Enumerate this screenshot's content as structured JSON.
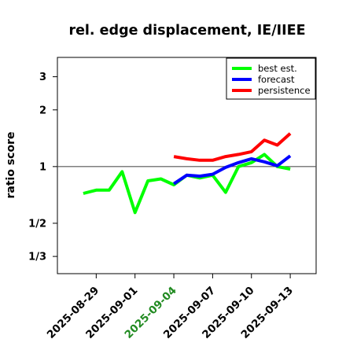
{
  "chart_data": {
    "type": "line",
    "title": "rel. edge displacement, IE/IIEE",
    "xlabel": "",
    "ylabel": "ratio score",
    "y_scale": "log",
    "ylim": [
      0.27,
      3.8
    ],
    "yticks": [
      {
        "value": 0.3333,
        "label": "1/3"
      },
      {
        "value": 0.5,
        "label": "1/2"
      },
      {
        "value": 1,
        "label": "1"
      },
      {
        "value": 2,
        "label": "2"
      },
      {
        "value": 3,
        "label": "3"
      }
    ],
    "xlim": [
      "2025-08-26",
      "2025-09-15"
    ],
    "xticks": [
      {
        "date": "2025-08-29",
        "label": "2025-08-29",
        "color": "#000000"
      },
      {
        "date": "2025-09-01",
        "label": "2025-09-01",
        "color": "#000000"
      },
      {
        "date": "2025-09-04",
        "label": "2025-09-04",
        "color": "#228B22"
      },
      {
        "date": "2025-09-07",
        "label": "2025-09-07",
        "color": "#000000"
      },
      {
        "date": "2025-09-10",
        "label": "2025-09-10",
        "color": "#000000"
      },
      {
        "date": "2025-09-13",
        "label": "2025-09-13",
        "color": "#000000"
      }
    ],
    "reference_line": 1,
    "legend_position": "top-right",
    "series": [
      {
        "name": "best est.",
        "color": "#00ff00",
        "x": [
          "2025-08-28",
          "2025-08-29",
          "2025-08-30",
          "2025-08-31",
          "2025-09-01",
          "2025-09-02",
          "2025-09-03",
          "2025-09-04",
          "2025-09-05",
          "2025-09-06",
          "2025-09-07",
          "2025-09-08",
          "2025-09-09",
          "2025-09-10",
          "2025-09-11",
          "2025-09-12",
          "2025-09-13"
        ],
        "y": [
          0.72,
          0.75,
          0.75,
          0.94,
          0.57,
          0.84,
          0.86,
          0.8,
          0.9,
          0.87,
          0.9,
          0.73,
          1.0,
          1.05,
          1.16,
          1.0,
          0.97
        ]
      },
      {
        "name": "forecast",
        "color": "#0000ff",
        "x": [
          "2025-09-04",
          "2025-09-05",
          "2025-09-06",
          "2025-09-07",
          "2025-09-08",
          "2025-09-09",
          "2025-09-10",
          "2025-09-11",
          "2025-09-12",
          "2025-09-13"
        ],
        "y": [
          0.81,
          0.9,
          0.89,
          0.91,
          0.99,
          1.05,
          1.1,
          1.06,
          1.01,
          1.14
        ]
      },
      {
        "name": "persistence",
        "color": "#ff0000",
        "x": [
          "2025-09-04",
          "2025-09-05",
          "2025-09-06",
          "2025-09-07",
          "2025-09-08",
          "2025-09-09",
          "2025-09-10",
          "2025-09-11",
          "2025-09-12",
          "2025-09-13"
        ],
        "y": [
          1.13,
          1.1,
          1.08,
          1.08,
          1.13,
          1.16,
          1.2,
          1.38,
          1.3,
          1.5
        ]
      }
    ]
  }
}
